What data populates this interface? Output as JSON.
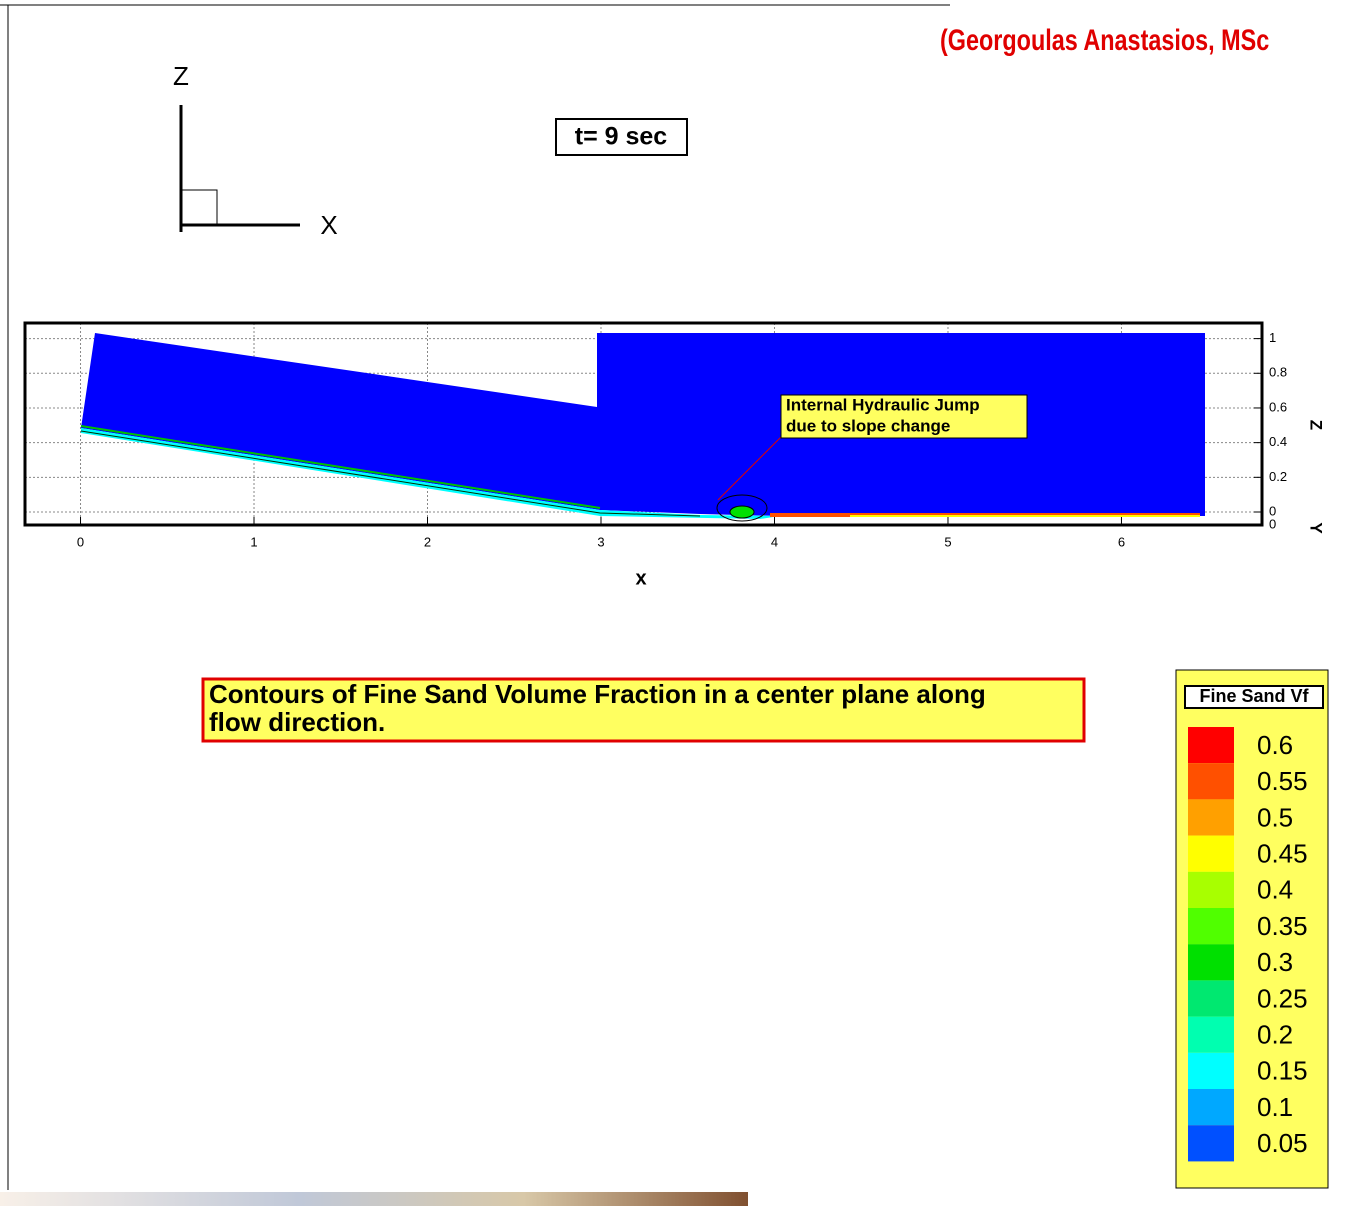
{
  "author": "(Georgoulas Anastasios, MSc",
  "time_label": "t= 9 sec",
  "axis_triad": {
    "vertical": "Z",
    "horizontal": "X"
  },
  "plot": {
    "xlabel": "x",
    "zlabel": "Z",
    "ylabel": "Y",
    "xlim": [
      -0.32,
      6.81
    ],
    "zlim": [
      -0.075,
      1.09
    ],
    "xticks": [
      0,
      1,
      2,
      3,
      4,
      5,
      6
    ],
    "zticks": [
      0,
      0.2,
      0.4,
      0.6,
      0.8,
      1
    ],
    "yticks": [
      0
    ],
    "annotation": [
      "Internal Hydraulic Jump",
      "due to slope change"
    ]
  },
  "caption": [
    "Contours of Fine Sand Volume Fraction in a center plane along",
    "flow direction."
  ],
  "legend": {
    "title": "Fine Sand Vf",
    "levels": [
      {
        "value": 0.6,
        "color": "#ff0000"
      },
      {
        "value": 0.55,
        "color": "#ff5000"
      },
      {
        "value": 0.5,
        "color": "#ffa000"
      },
      {
        "value": 0.45,
        "color": "#ffff00"
      },
      {
        "value": 0.4,
        "color": "#a8ff00"
      },
      {
        "value": 0.35,
        "color": "#50ff00"
      },
      {
        "value": 0.3,
        "color": "#00e000"
      },
      {
        "value": 0.25,
        "color": "#00e870"
      },
      {
        "value": 0.2,
        "color": "#00ffb0"
      },
      {
        "value": 0.15,
        "color": "#00ffff"
      },
      {
        "value": 0.1,
        "color": "#00a8ff"
      },
      {
        "value": 0.05,
        "color": "#0050ff"
      }
    ]
  }
}
